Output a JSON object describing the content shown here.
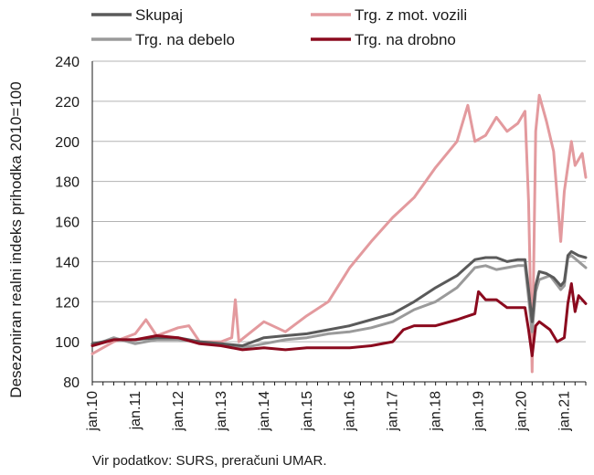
{
  "chart_data": {
    "type": "line",
    "ylabel": "Desezoniran realni indeks prihodka 2010=100",
    "ylim": [
      80,
      240
    ],
    "yticks": [
      80,
      100,
      120,
      140,
      160,
      180,
      200,
      220,
      240
    ],
    "xlim": [
      "2010-01",
      "2021-07"
    ],
    "x_tick_labels": [
      "jan.10",
      "jan.11",
      "jan.12",
      "jan.13",
      "jan.14",
      "jan.15",
      "jan.16",
      "jan.17",
      "jan.18",
      "jan.19",
      "jan.20",
      "jan.21"
    ],
    "grid": "horizontal",
    "legend_position": "top",
    "series": [
      {
        "name": "Skupaj",
        "color": "#5a5a5a",
        "points": [
          [
            "2010-01",
            99
          ],
          [
            "2010-07",
            101
          ],
          [
            "2011-01",
            101
          ],
          [
            "2011-07",
            102
          ],
          [
            "2012-01",
            102
          ],
          [
            "2012-07",
            100
          ],
          [
            "2013-01",
            99
          ],
          [
            "2013-07",
            98
          ],
          [
            "2014-01",
            102
          ],
          [
            "2014-07",
            103
          ],
          [
            "2015-01",
            104
          ],
          [
            "2015-07",
            106
          ],
          [
            "2016-01",
            108
          ],
          [
            "2016-07",
            111
          ],
          [
            "2017-01",
            114
          ],
          [
            "2017-07",
            120
          ],
          [
            "2018-01",
            127
          ],
          [
            "2018-07",
            133
          ],
          [
            "2018-12",
            141
          ],
          [
            "2019-03",
            142
          ],
          [
            "2019-06",
            142
          ],
          [
            "2019-09",
            140
          ],
          [
            "2019-12",
            141
          ],
          [
            "2020-02",
            141
          ],
          [
            "2020-03",
            126
          ],
          [
            "2020-04",
            110
          ],
          [
            "2020-05",
            128
          ],
          [
            "2020-06",
            135
          ],
          [
            "2020-08",
            134
          ],
          [
            "2020-10",
            132
          ],
          [
            "2020-12",
            128
          ],
          [
            "2021-01",
            130
          ],
          [
            "2021-02",
            143
          ],
          [
            "2021-03",
            145
          ],
          [
            "2021-05",
            143
          ],
          [
            "2021-07",
            142
          ]
        ]
      },
      {
        "name": "Trg. z mot. vozili",
        "color": "#e39a9e",
        "points": [
          [
            "2010-01",
            94
          ],
          [
            "2010-04",
            97
          ],
          [
            "2010-07",
            100
          ],
          [
            "2011-01",
            104
          ],
          [
            "2011-04",
            111
          ],
          [
            "2011-07",
            103
          ],
          [
            "2012-01",
            107
          ],
          [
            "2012-04",
            108
          ],
          [
            "2012-07",
            100
          ],
          [
            "2013-01",
            100
          ],
          [
            "2013-04",
            102
          ],
          [
            "2013-05",
            121
          ],
          [
            "2013-06",
            100
          ],
          [
            "2014-01",
            110
          ],
          [
            "2014-07",
            105
          ],
          [
            "2015-01",
            113
          ],
          [
            "2015-07",
            120
          ],
          [
            "2016-01",
            137
          ],
          [
            "2016-07",
            150
          ],
          [
            "2017-01",
            162
          ],
          [
            "2017-07",
            172
          ],
          [
            "2018-01",
            187
          ],
          [
            "2018-07",
            200
          ],
          [
            "2018-10",
            218
          ],
          [
            "2018-12",
            200
          ],
          [
            "2019-03",
            203
          ],
          [
            "2019-06",
            212
          ],
          [
            "2019-09",
            205
          ],
          [
            "2019-12",
            209
          ],
          [
            "2020-02",
            215
          ],
          [
            "2020-03",
            170
          ],
          [
            "2020-04",
            85
          ],
          [
            "2020-05",
            205
          ],
          [
            "2020-06",
            223
          ],
          [
            "2020-08",
            210
          ],
          [
            "2020-10",
            195
          ],
          [
            "2020-12",
            150
          ],
          [
            "2021-01",
            175
          ],
          [
            "2021-03",
            200
          ],
          [
            "2021-04",
            188
          ],
          [
            "2021-06",
            194
          ],
          [
            "2021-07",
            182
          ]
        ]
      },
      {
        "name": "Trg. na debelo",
        "color": "#9a9a9a",
        "points": [
          [
            "2010-01",
            98
          ],
          [
            "2010-07",
            102
          ],
          [
            "2011-01",
            99
          ],
          [
            "2011-07",
            101
          ],
          [
            "2012-01",
            101
          ],
          [
            "2012-07",
            100
          ],
          [
            "2013-01",
            99
          ],
          [
            "2013-07",
            97
          ],
          [
            "2014-01",
            99
          ],
          [
            "2014-07",
            101
          ],
          [
            "2015-01",
            102
          ],
          [
            "2015-07",
            104
          ],
          [
            "2016-01",
            105
          ],
          [
            "2016-07",
            107
          ],
          [
            "2017-01",
            110
          ],
          [
            "2017-07",
            116
          ],
          [
            "2018-01",
            120
          ],
          [
            "2018-07",
            127
          ],
          [
            "2018-12",
            137
          ],
          [
            "2019-03",
            138
          ],
          [
            "2019-06",
            136
          ],
          [
            "2019-09",
            137
          ],
          [
            "2019-12",
            138
          ],
          [
            "2020-02",
            138
          ],
          [
            "2020-03",
            122
          ],
          [
            "2020-04",
            105
          ],
          [
            "2020-05",
            125
          ],
          [
            "2020-06",
            131
          ],
          [
            "2020-09",
            133
          ],
          [
            "2020-12",
            126
          ],
          [
            "2021-01",
            128
          ],
          [
            "2021-02",
            142
          ],
          [
            "2021-03",
            143
          ],
          [
            "2021-05",
            140
          ],
          [
            "2021-07",
            137
          ]
        ]
      },
      {
        "name": "Trg. na drobno",
        "color": "#8b0a1e",
        "points": [
          [
            "2010-01",
            98
          ],
          [
            "2010-07",
            101
          ],
          [
            "2011-01",
            101
          ],
          [
            "2011-07",
            103
          ],
          [
            "2012-01",
            102
          ],
          [
            "2012-07",
            99
          ],
          [
            "2013-01",
            98
          ],
          [
            "2013-07",
            96
          ],
          [
            "2014-01",
            97
          ],
          [
            "2014-07",
            96
          ],
          [
            "2015-01",
            97
          ],
          [
            "2015-07",
            97
          ],
          [
            "2016-01",
            97
          ],
          [
            "2016-07",
            98
          ],
          [
            "2017-01",
            100
          ],
          [
            "2017-04",
            106
          ],
          [
            "2017-07",
            108
          ],
          [
            "2018-01",
            108
          ],
          [
            "2018-07",
            111
          ],
          [
            "2018-12",
            114
          ],
          [
            "2019-01",
            125
          ],
          [
            "2019-03",
            121
          ],
          [
            "2019-06",
            121
          ],
          [
            "2019-09",
            117
          ],
          [
            "2019-12",
            117
          ],
          [
            "2020-02",
            117
          ],
          [
            "2020-03",
            106
          ],
          [
            "2020-04",
            93
          ],
          [
            "2020-05",
            108
          ],
          [
            "2020-06",
            110
          ],
          [
            "2020-09",
            106
          ],
          [
            "2020-11",
            100
          ],
          [
            "2021-01",
            102
          ],
          [
            "2021-02",
            119
          ],
          [
            "2021-03",
            129
          ],
          [
            "2021-04",
            115
          ],
          [
            "2021-05",
            123
          ],
          [
            "2021-07",
            119
          ]
        ]
      }
    ]
  },
  "source_text": "Vir podatkov: SURS, preračuni UMAR."
}
